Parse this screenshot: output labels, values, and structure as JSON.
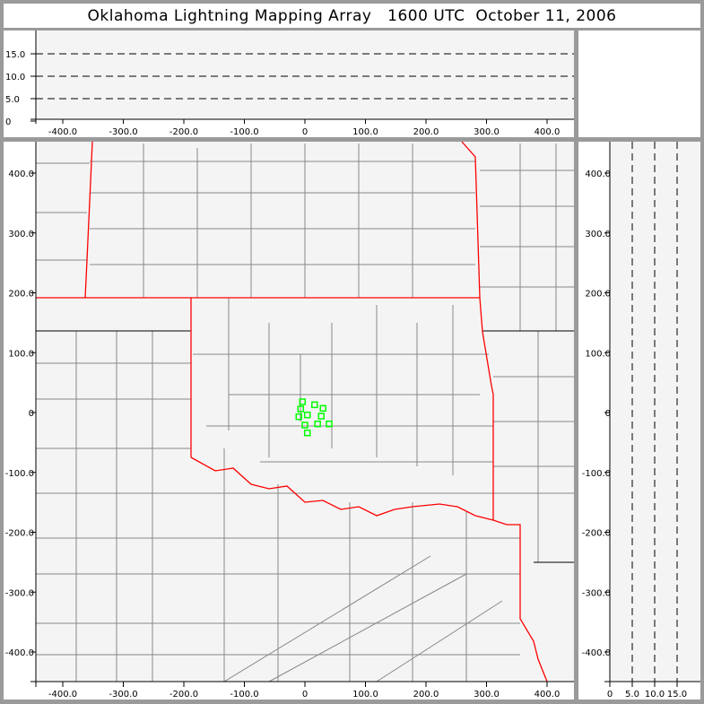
{
  "title": "Oklahoma Lightning Mapping Array   1600 UTC  October 11, 2006",
  "chart_data": {
    "type": "scatter",
    "title": "Oklahoma Lightning Mapping Array   1600 UTC  October 11, 2006",
    "plan_view": {
      "xlim": [
        -450,
        450
      ],
      "ylim": [
        -450,
        450
      ],
      "xticks": [
        "-400.0",
        "-300.0",
        "-200.0",
        "-100.0",
        "0",
        "100.0",
        "200.0",
        "300.0",
        "400.0"
      ],
      "yticks": [
        "400.0",
        "300.0",
        "200.0",
        "100.0",
        "0",
        "-100.0",
        "-200.0",
        "-300.0",
        "-400.0"
      ],
      "points": [
        {
          "x": -4,
          "y": 18
        },
        {
          "x": 16,
          "y": 13
        },
        {
          "x": 30,
          "y": 7
        },
        {
          "x": -7,
          "y": 6
        },
        {
          "x": 4,
          "y": -4
        },
        {
          "x": -10,
          "y": -7
        },
        {
          "x": 27,
          "y": -6
        },
        {
          "x": 0,
          "y": -21
        },
        {
          "x": 21,
          "y": -19
        },
        {
          "x": 40,
          "y": -19
        },
        {
          "x": 4,
          "y": -34
        }
      ],
      "point_color": "#00ff00",
      "state_border_color": "#ff0000",
      "county_line_color": "#888888"
    },
    "altitude_panel": {
      "xlim": [
        -450,
        450
      ],
      "ylim": [
        0,
        20
      ],
      "yticks": [
        "0",
        "5.0",
        "10.0",
        "15.0"
      ],
      "xticks": [
        "-400.0",
        "-300.0",
        "-200.0",
        "-100.0",
        "0",
        "100.0",
        "200.0",
        "300.0",
        "400.0"
      ],
      "grid": "dashed at 5, 10, 15"
    },
    "side_panel": {
      "xlim": [
        0,
        20
      ],
      "xticks": [
        "0",
        "5.0",
        "10.0",
        "15.0"
      ],
      "yticks": [
        "400.0",
        "300.0",
        "200.0",
        "100.0",
        "0",
        "-100.0",
        "-200.0",
        "-300.0",
        "-400.0"
      ],
      "grid": "dashed at 5, 10, 15"
    }
  }
}
